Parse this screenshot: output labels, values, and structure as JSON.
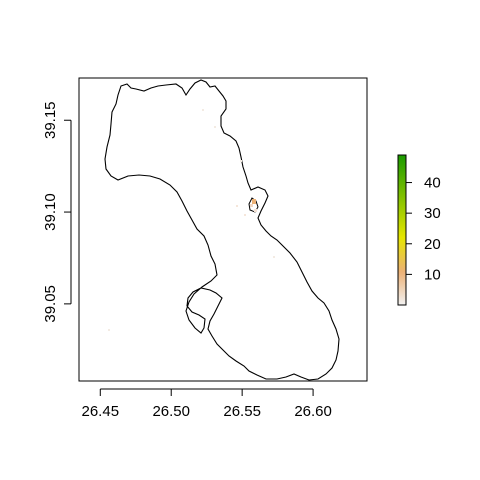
{
  "map": {
    "x_axis": {
      "range": [
        26.435,
        26.638
      ],
      "ticks": [
        26.45,
        26.5,
        26.55,
        26.6
      ],
      "labels": [
        "26.45",
        "26.50",
        "26.55",
        "26.60"
      ]
    },
    "y_axis": {
      "range": [
        39.008,
        39.173
      ],
      "ticks": [
        39.05,
        39.1,
        39.15
      ],
      "labels": [
        "39.05",
        "39.10",
        "39.15"
      ]
    },
    "legend": {
      "range": [
        0,
        49
      ],
      "ticks": [
        10,
        20,
        30,
        40
      ],
      "labels": [
        "10",
        "20",
        "30",
        "40"
      ],
      "colors": [
        "#f2f2f2",
        "#ecb176",
        "#e6e600",
        "#1a9a00"
      ],
      "placement": "right"
    },
    "outline_color": "#000000"
  }
}
